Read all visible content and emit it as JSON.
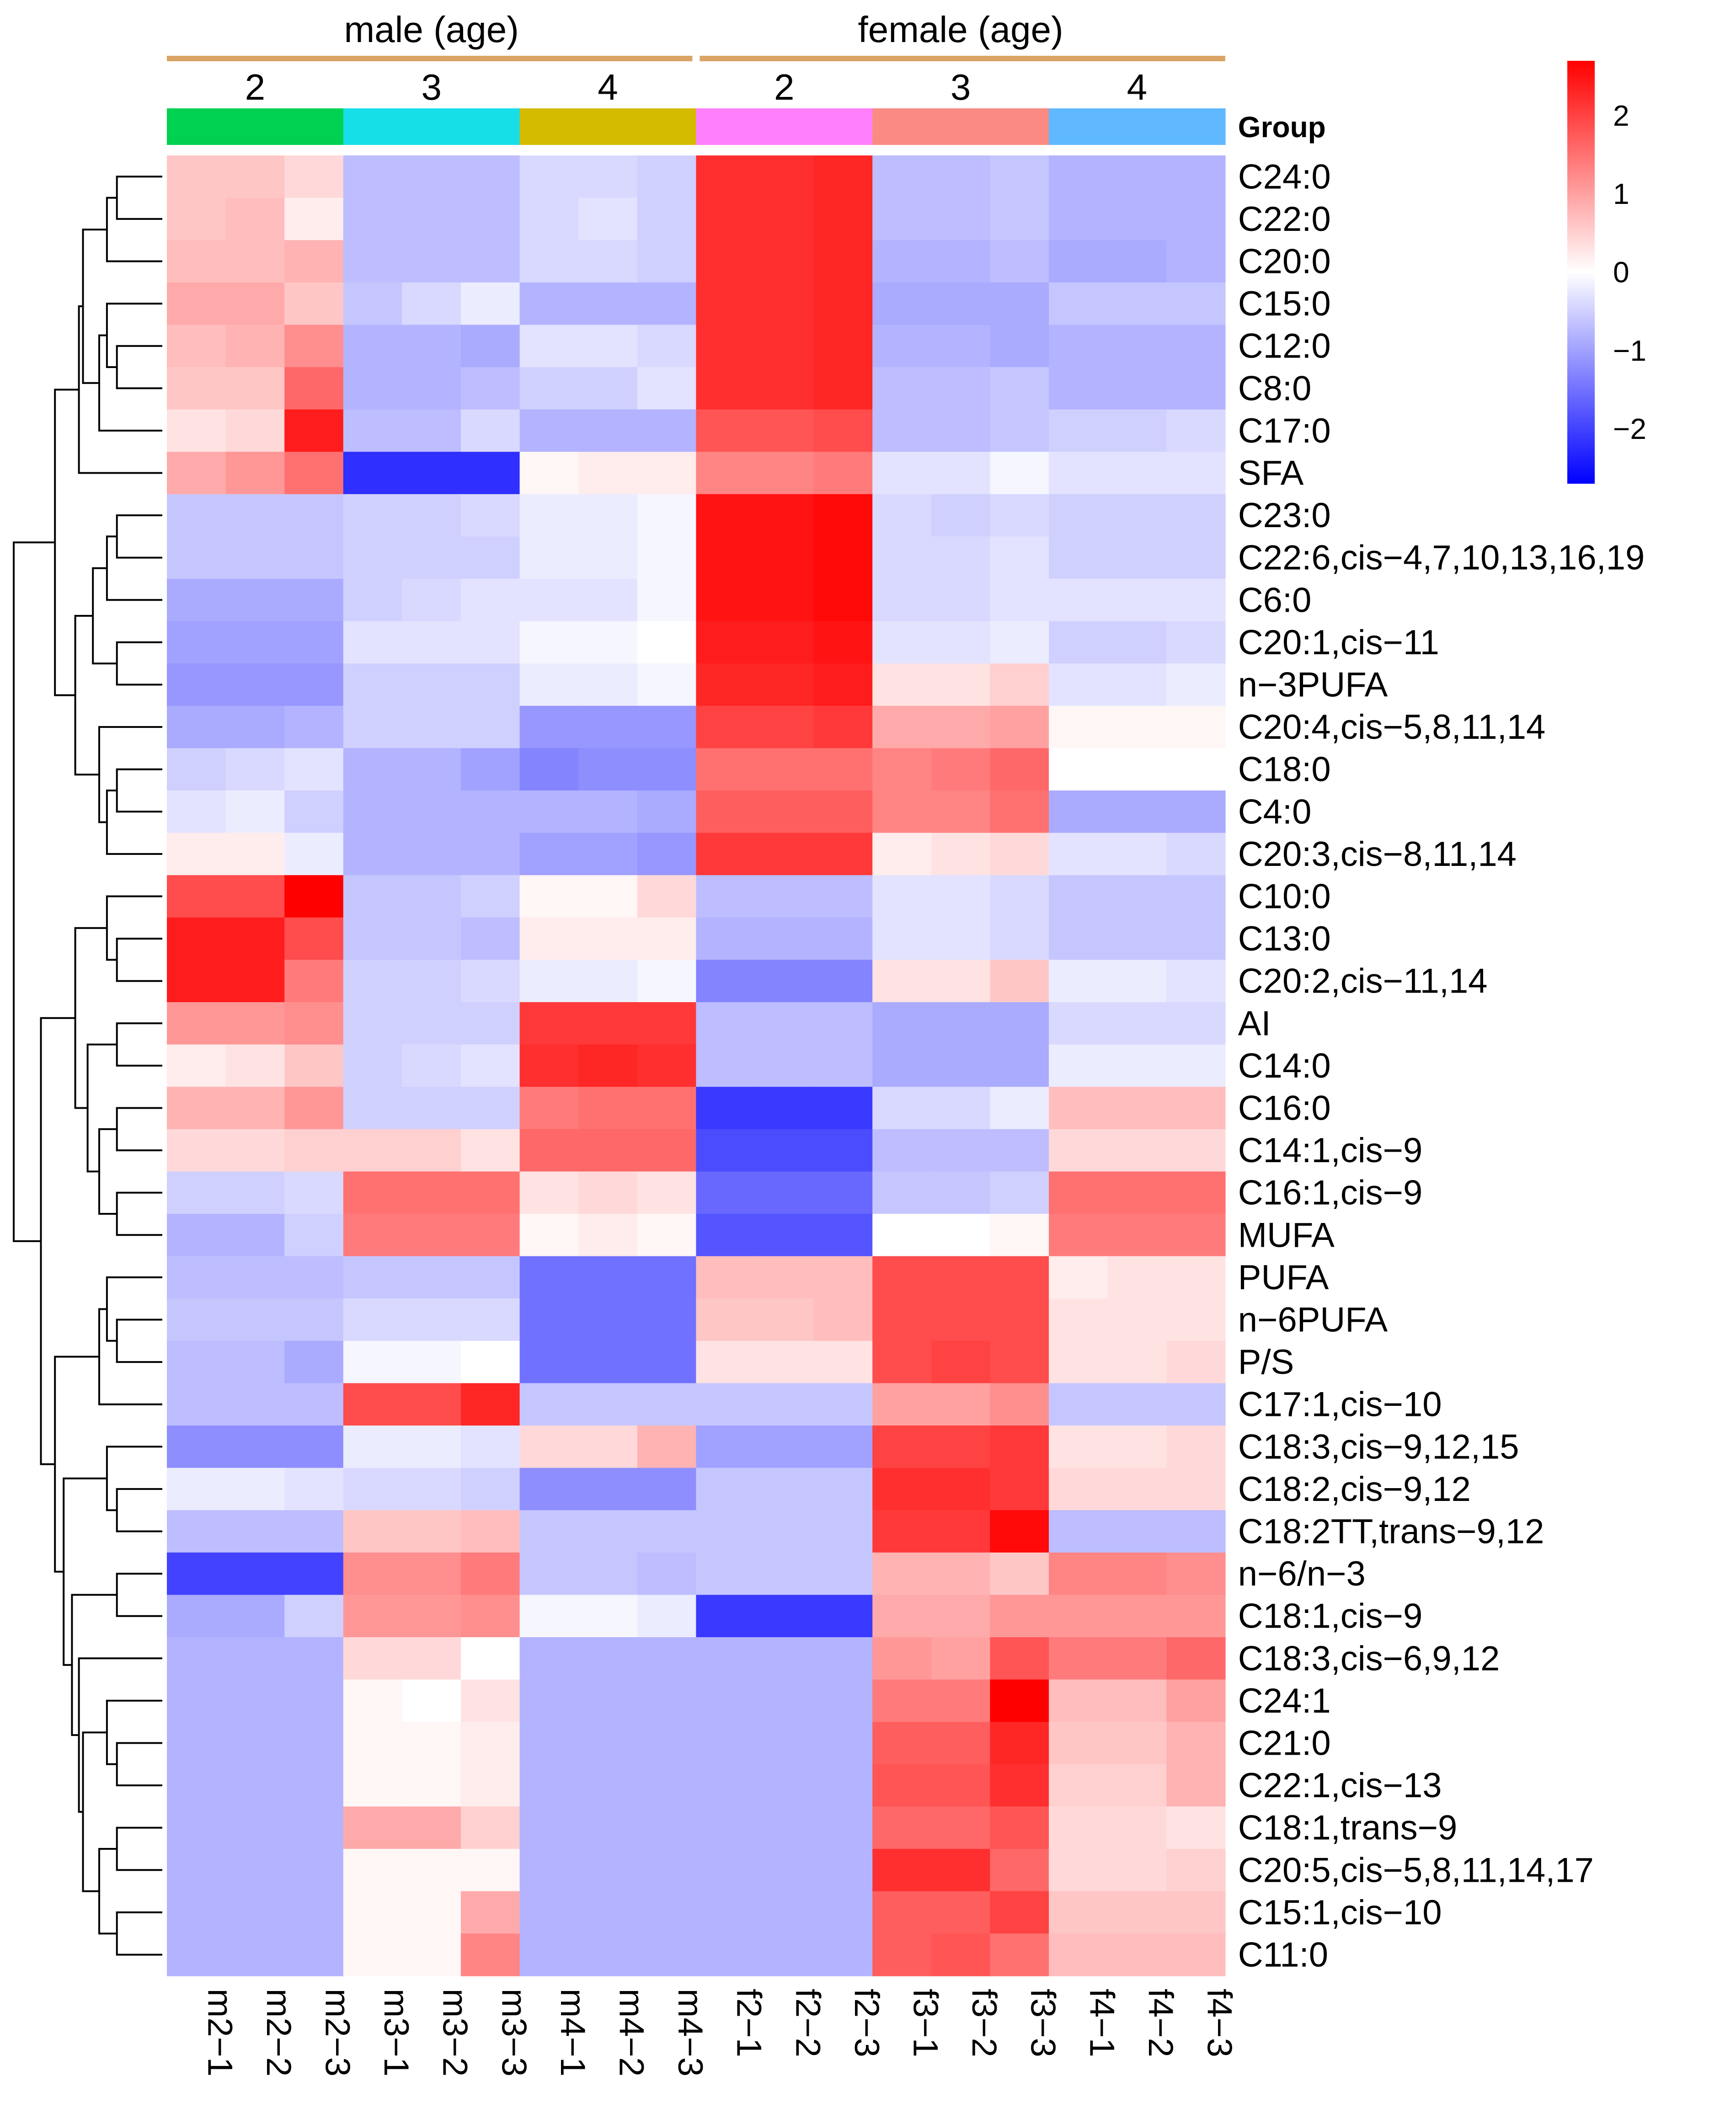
{
  "chart_data": {
    "type": "heatmap",
    "title": "",
    "sex_labels": [
      "male (age)",
      "female (age)"
    ],
    "sex_colors": [
      "#d9a465",
      "#d9a465"
    ],
    "age_labels": [
      "2",
      "3",
      "4",
      "2",
      "3",
      "4"
    ],
    "group_label": "Group",
    "group_colors": [
      "#00d150",
      "#17dfe8",
      "#d4bb00",
      "#ff80fa",
      "#fa8a82",
      "#60b8ff"
    ],
    "columns": [
      "m2−1",
      "m2−2",
      "m2−3",
      "m3−1",
      "m3−2",
      "m3−3",
      "m4−1",
      "m4−2",
      "m4−3",
      "f2−1",
      "f2−2",
      "f2−3",
      "f3−1",
      "f3−2",
      "f3−3",
      "f4−1",
      "f4−2",
      "f4−3"
    ],
    "rows": [
      "C24:0",
      "C22:0",
      "C20:0",
      "C15:0",
      "C12:0",
      "C8:0",
      "C17:0",
      "SFA",
      "C23:0",
      "C22:6,cis−4,7,10,13,16,19",
      "C6:0",
      "C20:1,cis−11",
      "n−3PUFA",
      "C20:4,cis−5,8,11,14",
      "C18:0",
      "C4:0",
      "C20:3,cis−8,11,14",
      "C10:0",
      "C13:0",
      "C20:2,cis−11,14",
      "AI",
      "C14:0",
      "C16:0",
      "C14:1,cis−9",
      "C16:1,cis−9",
      "MUFA",
      "PUFA",
      "n−6PUFA",
      "P/S",
      "C17:1,cis−10",
      "C18:3,cis−9,12,15",
      "C18:2,cis−9,12",
      "C18:2TT,trans−9,12",
      "n−6/n−3",
      "C18:1,cis−9",
      "C18:3,cis−6,9,12",
      "C24:1",
      "C21:0",
      "C22:1,cis−13",
      "C18:1,trans−9",
      "C20:5,cis−5,8,11,14,17",
      "C15:1,cis−10",
      "C11:0"
    ],
    "values": [
      [
        0.6,
        0.6,
        0.4,
        -0.7,
        -0.7,
        -0.7,
        -0.4,
        -0.4,
        -0.5,
        2.2,
        2.2,
        2.3,
        -0.7,
        -0.7,
        -0.6,
        -0.8,
        -0.8,
        -0.8
      ],
      [
        0.6,
        0.7,
        0.2,
        -0.7,
        -0.7,
        -0.7,
        -0.4,
        -0.3,
        -0.5,
        2.2,
        2.2,
        2.3,
        -0.7,
        -0.7,
        -0.6,
        -0.8,
        -0.8,
        -0.8
      ],
      [
        0.7,
        0.7,
        0.8,
        -0.7,
        -0.7,
        -0.7,
        -0.4,
        -0.4,
        -0.5,
        2.2,
        2.2,
        2.3,
        -0.8,
        -0.8,
        -0.7,
        -0.9,
        -0.9,
        -0.8
      ],
      [
        0.9,
        0.9,
        0.6,
        -0.6,
        -0.4,
        -0.2,
        -0.8,
        -0.8,
        -0.8,
        2.2,
        2.2,
        2.3,
        -0.9,
        -0.9,
        -0.9,
        -0.6,
        -0.6,
        -0.6
      ],
      [
        0.7,
        0.8,
        1.2,
        -0.8,
        -0.8,
        -0.9,
        -0.3,
        -0.3,
        -0.4,
        2.2,
        2.2,
        2.3,
        -0.8,
        -0.8,
        -0.9,
        -0.8,
        -0.8,
        -0.8
      ],
      [
        0.6,
        0.6,
        1.6,
        -0.8,
        -0.8,
        -0.7,
        -0.5,
        -0.5,
        -0.3,
        2.2,
        2.2,
        2.3,
        -0.7,
        -0.7,
        -0.6,
        -0.8,
        -0.8,
        -0.8
      ],
      [
        0.3,
        0.4,
        2.4,
        -0.7,
        -0.7,
        -0.4,
        -0.8,
        -0.8,
        -0.8,
        1.8,
        1.8,
        1.9,
        -0.7,
        -0.7,
        -0.6,
        -0.5,
        -0.5,
        -0.4
      ],
      [
        0.9,
        1.1,
        1.5,
        -2.2,
        -2.2,
        -2.2,
        0.1,
        0.2,
        0.2,
        1.3,
        1.3,
        1.4,
        -0.3,
        -0.3,
        -0.1,
        -0.3,
        -0.3,
        -0.3
      ],
      [
        -0.6,
        -0.6,
        -0.6,
        -0.5,
        -0.5,
        -0.4,
        -0.2,
        -0.2,
        -0.1,
        2.5,
        2.5,
        2.6,
        -0.4,
        -0.5,
        -0.4,
        -0.5,
        -0.5,
        -0.5
      ],
      [
        -0.6,
        -0.6,
        -0.6,
        -0.5,
        -0.5,
        -0.5,
        -0.2,
        -0.2,
        -0.1,
        2.5,
        2.5,
        2.6,
        -0.4,
        -0.4,
        -0.3,
        -0.5,
        -0.5,
        -0.5
      ],
      [
        -0.9,
        -0.9,
        -0.9,
        -0.5,
        -0.4,
        -0.3,
        -0.3,
        -0.3,
        -0.1,
        2.5,
        2.5,
        2.6,
        -0.4,
        -0.4,
        -0.3,
        -0.3,
        -0.3,
        -0.3
      ],
      [
        -1.0,
        -1.0,
        -1.0,
        -0.3,
        -0.3,
        -0.3,
        -0.1,
        -0.1,
        0.0,
        2.4,
        2.4,
        2.5,
        -0.3,
        -0.3,
        -0.2,
        -0.5,
        -0.5,
        -0.4
      ],
      [
        -1.1,
        -1.1,
        -1.1,
        -0.5,
        -0.5,
        -0.5,
        -0.2,
        -0.2,
        -0.1,
        2.3,
        2.3,
        2.4,
        0.3,
        0.3,
        0.5,
        -0.3,
        -0.3,
        -0.2
      ],
      [
        -0.9,
        -0.9,
        -0.8,
        -0.5,
        -0.5,
        -0.5,
        -1.1,
        -1.1,
        -1.1,
        2.0,
        2.0,
        2.1,
        0.9,
        0.9,
        1.0,
        0.1,
        0.1,
        0.1
      ],
      [
        -0.5,
        -0.4,
        -0.3,
        -0.8,
        -0.8,
        -1.0,
        -1.3,
        -1.2,
        -1.2,
        1.5,
        1.5,
        1.5,
        1.3,
        1.4,
        1.6,
        0.0,
        0.0,
        0.0
      ],
      [
        -0.3,
        -0.2,
        -0.5,
        -0.8,
        -0.8,
        -0.8,
        -0.8,
        -0.8,
        -0.9,
        1.7,
        1.7,
        1.7,
        1.3,
        1.3,
        1.5,
        -0.9,
        -0.9,
        -0.9
      ],
      [
        0.2,
        0.2,
        -0.2,
        -0.8,
        -0.8,
        -0.8,
        -1.0,
        -1.0,
        -1.1,
        2.1,
        2.1,
        2.1,
        0.2,
        0.3,
        0.4,
        -0.3,
        -0.3,
        -0.4
      ],
      [
        1.9,
        1.9,
        2.7,
        -0.6,
        -0.6,
        -0.5,
        0.1,
        0.1,
        0.4,
        -0.7,
        -0.7,
        -0.7,
        -0.3,
        -0.3,
        -0.4,
        -0.6,
        -0.6,
        -0.6
      ],
      [
        2.4,
        2.4,
        1.9,
        -0.6,
        -0.6,
        -0.7,
        0.2,
        0.2,
        0.2,
        -0.8,
        -0.8,
        -0.8,
        -0.3,
        -0.3,
        -0.4,
        -0.6,
        -0.6,
        -0.6
      ],
      [
        2.4,
        2.4,
        1.4,
        -0.5,
        -0.5,
        -0.4,
        -0.2,
        -0.2,
        -0.1,
        -1.3,
        -1.3,
        -1.3,
        0.3,
        0.3,
        0.6,
        -0.2,
        -0.2,
        -0.3
      ],
      [
        1.1,
        1.1,
        1.2,
        -0.5,
        -0.5,
        -0.5,
        2.1,
        2.1,
        2.1,
        -0.7,
        -0.7,
        -0.7,
        -0.9,
        -0.9,
        -0.9,
        -0.4,
        -0.4,
        -0.4
      ],
      [
        0.2,
        0.3,
        0.6,
        -0.5,
        -0.4,
        -0.3,
        2.2,
        2.3,
        2.2,
        -0.7,
        -0.7,
        -0.7,
        -0.9,
        -0.9,
        -0.9,
        -0.2,
        -0.2,
        -0.2
      ],
      [
        0.8,
        0.8,
        1.1,
        -0.5,
        -0.5,
        -0.5,
        1.4,
        1.5,
        1.5,
        -2.1,
        -2.1,
        -2.1,
        -0.4,
        -0.4,
        -0.2,
        0.7,
        0.7,
        0.7
      ],
      [
        0.4,
        0.4,
        0.5,
        0.5,
        0.5,
        0.3,
        1.6,
        1.6,
        1.6,
        -1.9,
        -1.9,
        -1.9,
        -0.7,
        -0.7,
        -0.7,
        0.4,
        0.4,
        0.4
      ],
      [
        -0.5,
        -0.5,
        -0.4,
        1.5,
        1.5,
        1.5,
        0.3,
        0.4,
        0.3,
        -1.6,
        -1.6,
        -1.6,
        -0.6,
        -0.6,
        -0.5,
        1.5,
        1.5,
        1.5
      ],
      [
        -0.8,
        -0.8,
        -0.5,
        1.4,
        1.4,
        1.4,
        0.1,
        0.2,
        0.1,
        -1.8,
        -1.8,
        -1.8,
        0.0,
        0.0,
        0.1,
        1.4,
        1.4,
        1.4
      ],
      [
        -0.7,
        -0.7,
        -0.7,
        -0.6,
        -0.6,
        -0.6,
        -1.5,
        -1.5,
        -1.5,
        0.7,
        0.7,
        0.7,
        1.9,
        1.9,
        1.9,
        0.2,
        0.3,
        0.3
      ],
      [
        -0.6,
        -0.6,
        -0.6,
        -0.4,
        -0.4,
        -0.4,
        -1.5,
        -1.5,
        -1.5,
        0.6,
        0.6,
        0.7,
        1.9,
        1.9,
        1.9,
        0.3,
        0.3,
        0.3
      ],
      [
        -0.7,
        -0.7,
        -0.9,
        -0.1,
        -0.1,
        0.0,
        -1.5,
        -1.5,
        -1.5,
        0.3,
        0.3,
        0.3,
        1.9,
        2.0,
        1.9,
        0.3,
        0.3,
        0.4
      ],
      [
        -0.7,
        -0.7,
        -0.7,
        1.9,
        1.9,
        2.3,
        -0.6,
        -0.6,
        -0.6,
        -0.6,
        -0.6,
        -0.6,
        1.0,
        1.0,
        1.2,
        -0.6,
        -0.6,
        -0.6
      ],
      [
        -1.2,
        -1.2,
        -1.2,
        -0.2,
        -0.2,
        -0.3,
        0.4,
        0.4,
        0.8,
        -1.0,
        -1.0,
        -1.0,
        2.0,
        2.0,
        2.1,
        0.3,
        0.3,
        0.4
      ],
      [
        -0.2,
        -0.2,
        -0.3,
        -0.4,
        -0.4,
        -0.5,
        -1.2,
        -1.2,
        -1.2,
        -0.6,
        -0.6,
        -0.6,
        2.2,
        2.2,
        2.1,
        0.4,
        0.4,
        0.4
      ],
      [
        -0.7,
        -0.7,
        -0.7,
        0.6,
        0.6,
        0.7,
        -0.6,
        -0.6,
        -0.6,
        -0.6,
        -0.6,
        -0.6,
        2.1,
        2.1,
        2.6,
        -0.7,
        -0.7,
        -0.7
      ],
      [
        -2.0,
        -2.0,
        -2.0,
        1.2,
        1.2,
        1.4,
        -0.6,
        -0.6,
        -0.7,
        -0.6,
        -0.6,
        -0.6,
        0.8,
        0.8,
        0.6,
        1.3,
        1.3,
        1.2
      ],
      [
        -0.9,
        -0.9,
        -0.5,
        1.1,
        1.1,
        1.2,
        -0.1,
        -0.1,
        -0.2,
        -2.1,
        -2.1,
        -2.1,
        0.9,
        0.9,
        1.1,
        1.1,
        1.1,
        1.1
      ],
      [
        -0.8,
        -0.8,
        -0.8,
        0.4,
        0.4,
        0.0,
        -0.8,
        -0.8,
        -0.8,
        -0.8,
        -0.8,
        -0.8,
        1.1,
        1.0,
        1.8,
        1.4,
        1.4,
        1.6
      ],
      [
        -0.8,
        -0.8,
        -0.8,
        0.1,
        0.0,
        0.3,
        -0.8,
        -0.8,
        -0.8,
        -0.8,
        -0.8,
        -0.8,
        1.4,
        1.4,
        2.7,
        0.7,
        0.7,
        1.0
      ],
      [
        -0.8,
        -0.8,
        -0.8,
        0.1,
        0.1,
        0.2,
        -0.8,
        -0.8,
        -0.8,
        -0.8,
        -0.8,
        -0.8,
        1.7,
        1.7,
        2.3,
        0.6,
        0.6,
        0.8
      ],
      [
        -0.8,
        -0.8,
        -0.8,
        0.1,
        0.1,
        0.2,
        -0.8,
        -0.8,
        -0.8,
        -0.8,
        -0.8,
        -0.8,
        1.8,
        1.8,
        2.2,
        0.5,
        0.5,
        0.8
      ],
      [
        -0.8,
        -0.8,
        -0.8,
        0.9,
        0.9,
        0.5,
        -0.8,
        -0.8,
        -0.8,
        -0.8,
        -0.8,
        -0.8,
        1.6,
        1.6,
        1.8,
        0.4,
        0.4,
        0.3
      ],
      [
        -0.8,
        -0.8,
        -0.8,
        0.1,
        0.1,
        0.1,
        -0.8,
        -0.8,
        -0.8,
        -0.8,
        -0.8,
        -0.8,
        2.2,
        2.2,
        1.6,
        0.4,
        0.4,
        0.5
      ],
      [
        -0.8,
        -0.8,
        -0.8,
        0.1,
        0.1,
        0.9,
        -0.8,
        -0.8,
        -0.8,
        -0.8,
        -0.8,
        -0.8,
        1.7,
        1.7,
        2.0,
        0.6,
        0.6,
        0.6
      ],
      [
        -0.8,
        -0.8,
        -0.8,
        0.1,
        0.1,
        1.3,
        -0.8,
        -0.8,
        -0.8,
        -0.8,
        -0.8,
        -0.8,
        1.7,
        1.8,
        1.5,
        0.7,
        0.7,
        0.7
      ]
    ],
    "color_range": [
      -2.7,
      2.7
    ],
    "color_low": "#0000ff",
    "color_mid": "#ffffff",
    "color_high": "#ff0000",
    "legend_ticks": [
      2,
      1,
      0,
      -1,
      -2
    ],
    "legend_tick_labels": [
      "2",
      "1",
      "0",
      "−1",
      "−2"
    ],
    "dendrogram_leaf_order": "rows as listed"
  }
}
